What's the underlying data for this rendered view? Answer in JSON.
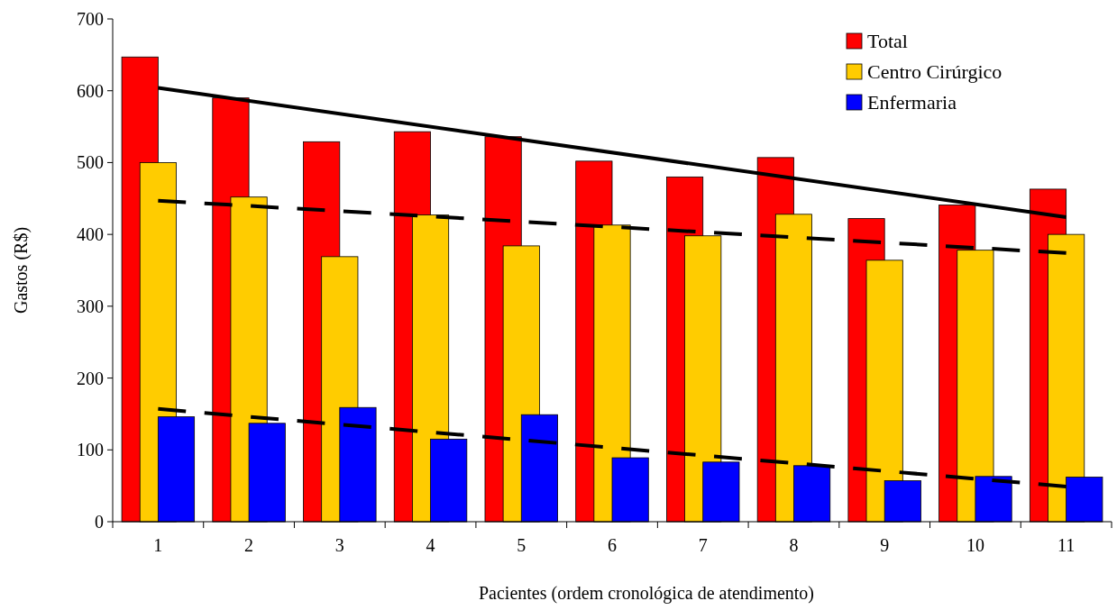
{
  "chart_data": {
    "type": "bar",
    "xlabel": "Pacientes (ordem cronológica de atendimento)",
    "ylabel": "Gastos (R$)",
    "categories": [
      "1",
      "2",
      "3",
      "4",
      "5",
      "6",
      "7",
      "8",
      "9",
      "10",
      "11"
    ],
    "series": [
      {
        "name": "Total",
        "color": "#ff0000",
        "values": [
          647,
          590,
          529,
          543,
          536,
          502,
          480,
          507,
          422,
          441,
          463
        ]
      },
      {
        "name": "Centro Cirúrgico",
        "color": "#ffcc00",
        "values": [
          500,
          452,
          369,
          427,
          384,
          413,
          398,
          428,
          364,
          378,
          400
        ]
      },
      {
        "name": "Enfermaria",
        "color": "#0000ff",
        "values": [
          146,
          137,
          159,
          115,
          149,
          89,
          83,
          78,
          57,
          63,
          62
        ]
      },
      {
        "type": "line",
        "color": "#000000",
        "line_style": "solid",
        "x": [
          "1",
          "11"
        ],
        "values": [
          604,
          424
        ]
      },
      {
        "type": "line",
        "color": "#000000",
        "line_style": "dashed",
        "x": [
          "1",
          "11"
        ],
        "values": [
          447,
          374
        ]
      },
      {
        "type": "line",
        "color": "#000000",
        "line_style": "dashed",
        "x": [
          "1",
          "11"
        ],
        "values": [
          157,
          49
        ]
      }
    ],
    "ylim": [
      0,
      700
    ],
    "yticks": [
      0,
      100,
      200,
      300,
      400,
      500,
      600,
      700
    ],
    "grid": false,
    "legend": "top right"
  }
}
